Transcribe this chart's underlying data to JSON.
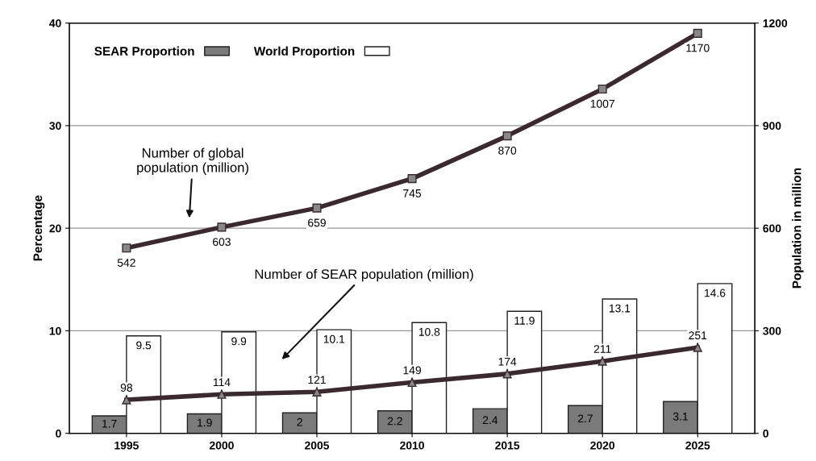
{
  "chart_data": {
    "type": "bar",
    "ylabel": "Percentage",
    "y2label": "Population in million",
    "categories": [
      "1995",
      "2000",
      "2005",
      "2010",
      "2015",
      "2020",
      "2025"
    ],
    "series": [
      {
        "name": "SEAR Proportion",
        "color": "#7a7a7a",
        "values": [
          1.7,
          1.9,
          2,
          2.2,
          2.4,
          2.7,
          3.1
        ]
      },
      {
        "name": "World Proportion",
        "color": "#ffffff",
        "values": [
          9.5,
          9.9,
          10.1,
          10.8,
          11.9,
          13.1,
          14.6
        ]
      },
      {
        "type": "line",
        "axis": "y2",
        "color": "#3a2a30",
        "marker": "square",
        "values": [
          542,
          603,
          659,
          745,
          870,
          1007,
          1170
        ]
      },
      {
        "type": "line",
        "axis": "y2",
        "color": "#3a2a30",
        "marker": "triangle",
        "values": [
          98,
          114,
          121,
          149,
          174,
          211,
          251
        ]
      }
    ],
    "ylim": [
      0,
      40
    ],
    "yticks": [
      0,
      10,
      20,
      30,
      40
    ],
    "y2lim": [
      0,
      1200
    ],
    "y2ticks": [
      0,
      300,
      600,
      900,
      1200
    ],
    "grid": "y",
    "legend": "top left",
    "data_labels": true,
    "line_style": "solid",
    "annotations": [
      "Number of global\npopulation (million)",
      "Number of SEAR population (million)"
    ]
  }
}
